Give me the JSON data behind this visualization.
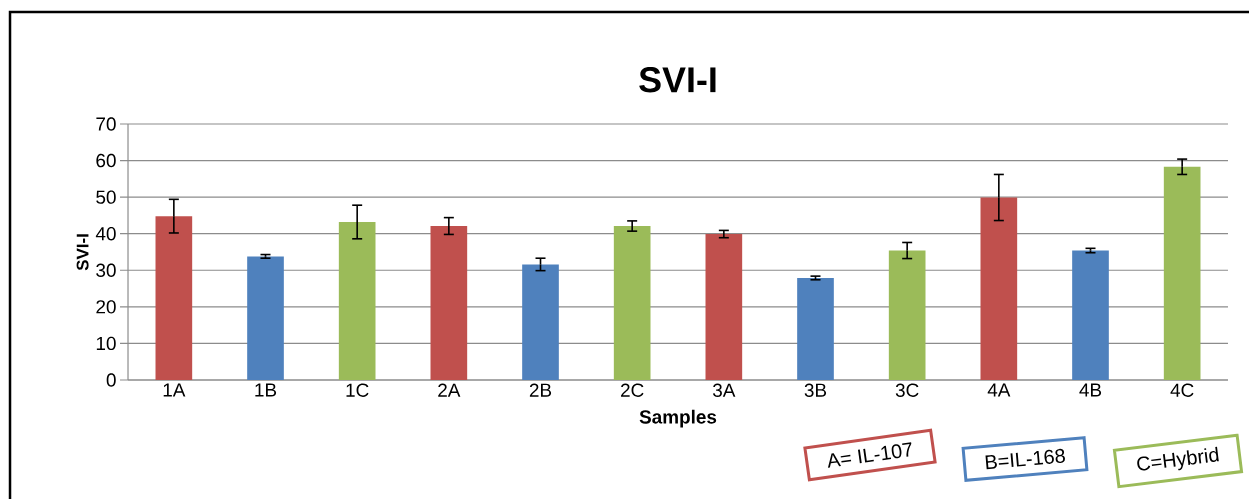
{
  "chart_data": {
    "type": "bar",
    "title": "SVI-I",
    "xlabel": "Samples",
    "ylabel": "SVI-I",
    "categories": [
      "1A",
      "1B",
      "1C",
      "2A",
      "2B",
      "2C",
      "3A",
      "3B",
      "3C",
      "4A",
      "4B",
      "4C"
    ],
    "values": [
      44.8,
      33.8,
      43.2,
      42.1,
      31.6,
      42.1,
      39.9,
      27.9,
      35.4,
      49.9,
      35.4,
      58.3
    ],
    "errors": [
      4.6,
      0.5,
      4.6,
      2.3,
      1.7,
      1.4,
      1.0,
      0.5,
      2.2,
      6.3,
      0.6,
      2.1
    ],
    "colors": [
      "#c0504d",
      "#4f81bd",
      "#9bbb59",
      "#c0504d",
      "#4f81bd",
      "#9bbb59",
      "#c0504d",
      "#4f81bd",
      "#9bbb59",
      "#c0504d",
      "#4f81bd",
      "#9bbb59"
    ],
    "ylim": [
      0,
      70
    ],
    "yticks": [
      0,
      10,
      20,
      30,
      40,
      50,
      60,
      70
    ],
    "grid": "y",
    "annotations": [
      "A= IL-107",
      "B=IL-168",
      "C=Hybrid"
    ]
  }
}
